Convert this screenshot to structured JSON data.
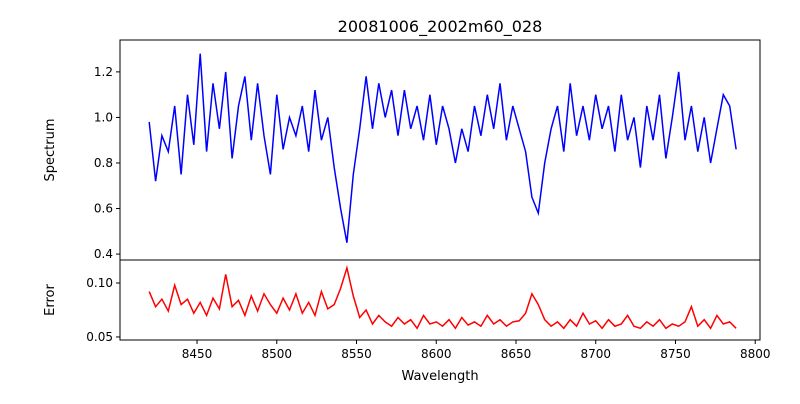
{
  "chart_data": [
    {
      "type": "line",
      "title": "20081006_2002m60_028",
      "xlabel": "",
      "ylabel": "Spectrum",
      "xlim": [
        8401.7,
        8803
      ],
      "ylim": [
        0.374,
        1.34
      ],
      "yticks": [
        0.4,
        0.6,
        0.8,
        1.0,
        1.2
      ],
      "ytick_labels": [
        "0.4",
        "0.6",
        "0.8",
        "1.0",
        "1.2"
      ],
      "color": "#0000ff",
      "x_start": 8420,
      "x_step": 4,
      "values": [
        0.98,
        0.72,
        0.92,
        0.85,
        1.05,
        0.75,
        1.1,
        0.88,
        1.28,
        0.85,
        1.15,
        0.95,
        1.2,
        0.82,
        1.05,
        1.18,
        0.9,
        1.15,
        0.92,
        0.75,
        1.1,
        0.86,
        1.0,
        0.92,
        1.05,
        0.85,
        1.12,
        0.9,
        1.0,
        0.78,
        0.6,
        0.45,
        0.75,
        0.95,
        1.18,
        0.95,
        1.15,
        1.0,
        1.12,
        0.92,
        1.12,
        0.95,
        1.05,
        0.9,
        1.1,
        0.88,
        1.05,
        0.95,
        0.8,
        0.95,
        0.85,
        1.05,
        0.92,
        1.1,
        0.95,
        1.15,
        0.9,
        1.05,
        0.95,
        0.85,
        0.65,
        0.58,
        0.8,
        0.95,
        1.05,
        0.85,
        1.15,
        0.92,
        1.05,
        0.9,
        1.1,
        0.95,
        1.05,
        0.85,
        1.1,
        0.9,
        1.0,
        0.78,
        1.05,
        0.9,
        1.1,
        0.82,
        1.0,
        1.2,
        0.9,
        1.05,
        0.85,
        1.0,
        0.8,
        0.95,
        1.1,
        1.05,
        0.86
      ]
    },
    {
      "type": "line",
      "title": "",
      "xlabel": "Wavelength",
      "ylabel": "Error",
      "xlim": [
        8401.7,
        8803
      ],
      "ylim": [
        0.0472,
        0.1213
      ],
      "yticks": [
        0.05,
        0.1
      ],
      "ytick_labels": [
        "0.05",
        "0.10"
      ],
      "xticks": [
        8450,
        8500,
        8550,
        8600,
        8650,
        8700,
        8750,
        8800
      ],
      "xtick_labels": [
        "8450",
        "8500",
        "8550",
        "8600",
        "8650",
        "8700",
        "8750",
        "8800"
      ],
      "color": "#ff0000",
      "x_start": 8420,
      "x_step": 4,
      "values": [
        0.092,
        0.078,
        0.085,
        0.074,
        0.098,
        0.08,
        0.085,
        0.072,
        0.082,
        0.07,
        0.086,
        0.076,
        0.108,
        0.078,
        0.084,
        0.07,
        0.088,
        0.074,
        0.09,
        0.08,
        0.072,
        0.086,
        0.075,
        0.09,
        0.072,
        0.082,
        0.07,
        0.092,
        0.076,
        0.08,
        0.095,
        0.114,
        0.088,
        0.068,
        0.075,
        0.062,
        0.07,
        0.064,
        0.06,
        0.068,
        0.062,
        0.066,
        0.058,
        0.07,
        0.062,
        0.064,
        0.06,
        0.066,
        0.058,
        0.068,
        0.061,
        0.064,
        0.06,
        0.07,
        0.062,
        0.066,
        0.06,
        0.064,
        0.065,
        0.072,
        0.09,
        0.08,
        0.066,
        0.06,
        0.064,
        0.058,
        0.066,
        0.06,
        0.072,
        0.062,
        0.065,
        0.058,
        0.066,
        0.06,
        0.062,
        0.07,
        0.06,
        0.058,
        0.064,
        0.06,
        0.066,
        0.058,
        0.062,
        0.06,
        0.064,
        0.078,
        0.06,
        0.066,
        0.058,
        0.07,
        0.062,
        0.064,
        0.058
      ]
    }
  ]
}
